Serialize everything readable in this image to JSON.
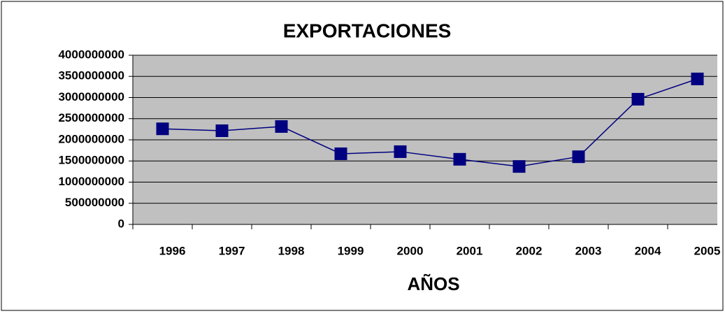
{
  "chart_data": {
    "type": "line",
    "title": "EXPORTACIONES",
    "x_label": "AÑOS",
    "categories": [
      "1996",
      "1997",
      "1998",
      "1999",
      "2000",
      "2001",
      "2002",
      "2003",
      "2004",
      "2005"
    ],
    "series": [
      {
        "name": "Exportaciones",
        "color": "#000080",
        "values": [
          2260000000,
          2215000000,
          2315000000,
          1670000000,
          1720000000,
          1540000000,
          1370000000,
          1600000000,
          2960000000,
          3440000000
        ]
      }
    ],
    "ylim": [
      0,
      4000000000
    ],
    "yticks": [
      0,
      500000000,
      1000000000,
      1500000000,
      2000000000,
      2500000000,
      3000000000,
      3500000000,
      4000000000
    ],
    "grid": true,
    "background": "#c0c0c0"
  }
}
